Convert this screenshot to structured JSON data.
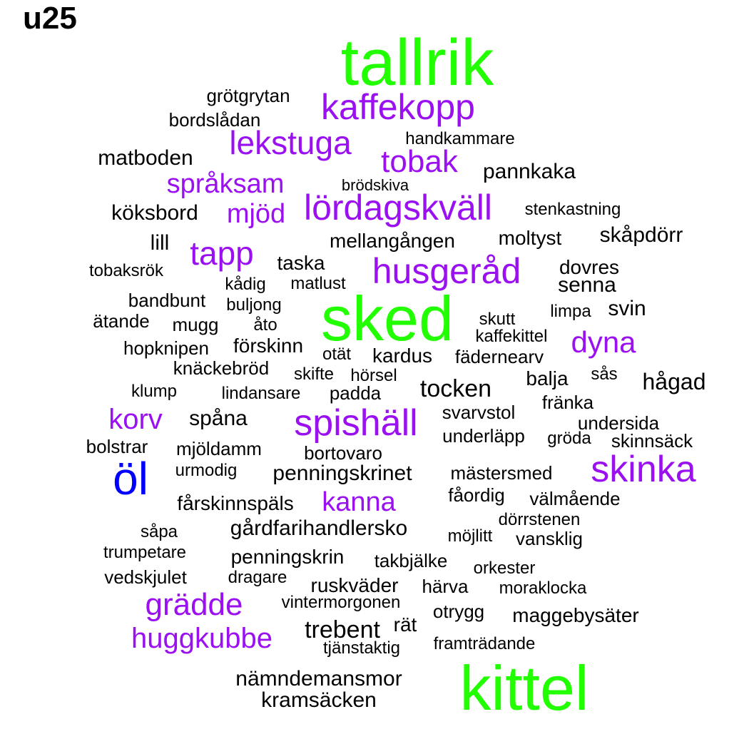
{
  "title": "u25",
  "colors": {
    "green": "#22ff00",
    "purple": "#9a10f0",
    "blue": "#0000ff",
    "black": "#000000"
  },
  "words": [
    {
      "text": "tallrik",
      "color": "green"
    },
    {
      "text": "sked",
      "color": "green"
    },
    {
      "text": "kittel",
      "color": "green"
    },
    {
      "text": "öl",
      "color": "blue"
    },
    {
      "text": "kaffekopp",
      "color": "purple"
    },
    {
      "text": "lekstuga",
      "color": "purple"
    },
    {
      "text": "tobak",
      "color": "purple"
    },
    {
      "text": "språksam",
      "color": "purple"
    },
    {
      "text": "mjöd",
      "color": "purple"
    },
    {
      "text": "lördagskväll",
      "color": "purple"
    },
    {
      "text": "tapp",
      "color": "purple"
    },
    {
      "text": "husgeråd",
      "color": "purple"
    },
    {
      "text": "dyna",
      "color": "purple"
    },
    {
      "text": "korv",
      "color": "purple"
    },
    {
      "text": "spishäll",
      "color": "purple"
    },
    {
      "text": "skinka",
      "color": "purple"
    },
    {
      "text": "kanna",
      "color": "purple"
    },
    {
      "text": "grädde",
      "color": "purple"
    },
    {
      "text": "huggkubbe",
      "color": "purple"
    },
    {
      "text": "grötgrytan",
      "color": "black"
    },
    {
      "text": "bordslådan",
      "color": "black"
    },
    {
      "text": "handkammare",
      "color": "black"
    },
    {
      "text": "matboden",
      "color": "black"
    },
    {
      "text": "pannkaka",
      "color": "black"
    },
    {
      "text": "brödskiva",
      "color": "black"
    },
    {
      "text": "köksbord",
      "color": "black"
    },
    {
      "text": "stenkastning",
      "color": "black"
    },
    {
      "text": "skåpdörr",
      "color": "black"
    },
    {
      "text": "lill",
      "color": "black"
    },
    {
      "text": "mellangången",
      "color": "black"
    },
    {
      "text": "moltyst",
      "color": "black"
    },
    {
      "text": "taska",
      "color": "black"
    },
    {
      "text": "tobaksrök",
      "color": "black"
    },
    {
      "text": "dovres",
      "color": "black"
    },
    {
      "text": "kådig",
      "color": "black"
    },
    {
      "text": "matlust",
      "color": "black"
    },
    {
      "text": "senna",
      "color": "black"
    },
    {
      "text": "bandbunt",
      "color": "black"
    },
    {
      "text": "buljong",
      "color": "black"
    },
    {
      "text": "limpa",
      "color": "black"
    },
    {
      "text": "svin",
      "color": "black"
    },
    {
      "text": "ätande",
      "color": "black"
    },
    {
      "text": "mugg",
      "color": "black"
    },
    {
      "text": "åto",
      "color": "black"
    },
    {
      "text": "skutt",
      "color": "black"
    },
    {
      "text": "kaffekittel",
      "color": "black"
    },
    {
      "text": "hopknipen",
      "color": "black"
    },
    {
      "text": "förskinn",
      "color": "black"
    },
    {
      "text": "otät",
      "color": "black"
    },
    {
      "text": "kardus",
      "color": "black"
    },
    {
      "text": "fädernearv",
      "color": "black"
    },
    {
      "text": "knäckebröd",
      "color": "black"
    },
    {
      "text": "skifte",
      "color": "black"
    },
    {
      "text": "hörsel",
      "color": "black"
    },
    {
      "text": "balja",
      "color": "black"
    },
    {
      "text": "sås",
      "color": "black"
    },
    {
      "text": "hågad",
      "color": "black"
    },
    {
      "text": "klump",
      "color": "black"
    },
    {
      "text": "lindansare",
      "color": "black"
    },
    {
      "text": "padda",
      "color": "black"
    },
    {
      "text": "tocken",
      "color": "black"
    },
    {
      "text": "fränka",
      "color": "black"
    },
    {
      "text": "spåna",
      "color": "black"
    },
    {
      "text": "svarvstol",
      "color": "black"
    },
    {
      "text": "undersida",
      "color": "black"
    },
    {
      "text": "underläpp",
      "color": "black"
    },
    {
      "text": "gröda",
      "color": "black"
    },
    {
      "text": "skinnsäck",
      "color": "black"
    },
    {
      "text": "bolstrar",
      "color": "black"
    },
    {
      "text": "mjöldamm",
      "color": "black"
    },
    {
      "text": "bortovaro",
      "color": "black"
    },
    {
      "text": "urmodig",
      "color": "black"
    },
    {
      "text": "penningskrinet",
      "color": "black"
    },
    {
      "text": "mästersmed",
      "color": "black"
    },
    {
      "text": "fåordig",
      "color": "black"
    },
    {
      "text": "välmående",
      "color": "black"
    },
    {
      "text": "fårskinnspäls",
      "color": "black"
    },
    {
      "text": "dörrstenen",
      "color": "black"
    },
    {
      "text": "såpa",
      "color": "black"
    },
    {
      "text": "gårdfarihandlersko",
      "color": "black"
    },
    {
      "text": "möjlitt",
      "color": "black"
    },
    {
      "text": "vansklig",
      "color": "black"
    },
    {
      "text": "trumpetare",
      "color": "black"
    },
    {
      "text": "penningskrin",
      "color": "black"
    },
    {
      "text": "takbjälke",
      "color": "black"
    },
    {
      "text": "orkester",
      "color": "black"
    },
    {
      "text": "vedskjulet",
      "color": "black"
    },
    {
      "text": "dragare",
      "color": "black"
    },
    {
      "text": "ruskväder",
      "color": "black"
    },
    {
      "text": "härva",
      "color": "black"
    },
    {
      "text": "moraklocka",
      "color": "black"
    },
    {
      "text": "vintermorgonen",
      "color": "black"
    },
    {
      "text": "otrygg",
      "color": "black"
    },
    {
      "text": "maggebysäter",
      "color": "black"
    },
    {
      "text": "trebent",
      "color": "black"
    },
    {
      "text": "rät",
      "color": "black"
    },
    {
      "text": "tjänstaktig",
      "color": "black"
    },
    {
      "text": "framträdande",
      "color": "black"
    },
    {
      "text": "nämndemansmor",
      "color": "black"
    },
    {
      "text": "kramsäcken",
      "color": "black"
    }
  ]
}
